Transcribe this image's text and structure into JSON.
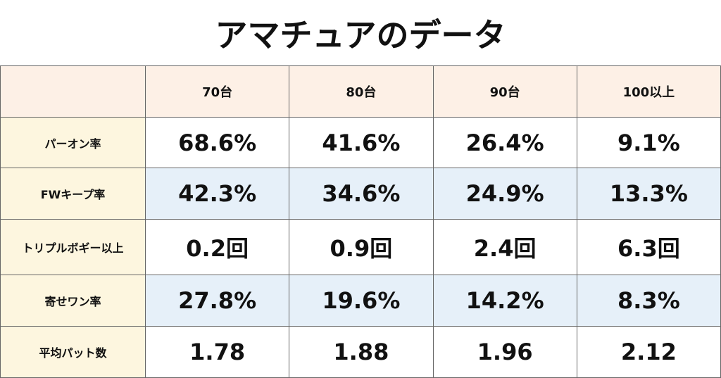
{
  "title": "アマチュアのデータ",
  "table": {
    "columns": [
      "70台",
      "80台",
      "90台",
      "100以上"
    ],
    "rows": [
      {
        "label": "パーオン率",
        "cells": [
          "68.6%",
          "41.6%",
          "26.4%",
          "9.1%"
        ]
      },
      {
        "label": "FWキープ率",
        "cells": [
          "42.3%",
          "34.6%",
          "24.9%",
          "13.3%"
        ]
      },
      {
        "label": "トリプルボギー以上",
        "cells": [
          "0.2回",
          "0.9回",
          "2.4回",
          "6.3回"
        ]
      },
      {
        "label": "寄せワン率",
        "cells": [
          "27.8%",
          "19.6%",
          "14.2%",
          "8.3%"
        ]
      },
      {
        "label": "平均パット数",
        "cells": [
          "1.78",
          "1.88",
          "1.96",
          "2.12"
        ]
      }
    ]
  }
}
